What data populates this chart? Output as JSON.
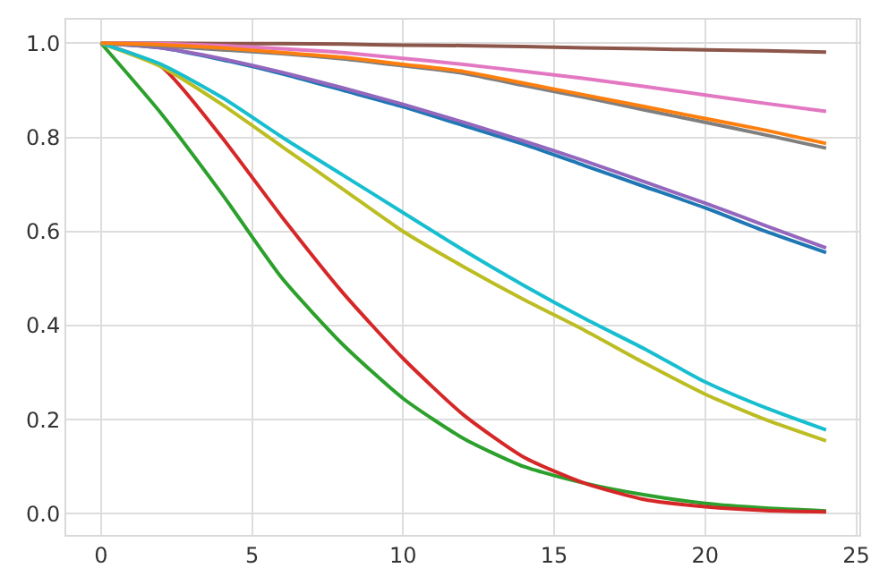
{
  "chart_data": {
    "type": "line",
    "x": [
      0,
      2,
      4,
      6,
      8,
      10,
      12,
      14,
      16,
      18,
      20,
      22,
      24
    ],
    "xlim": [
      -1.15,
      25.1
    ],
    "ylim": [
      -0.045,
      1.05
    ],
    "xticks": [
      0,
      5,
      10,
      15,
      20,
      25
    ],
    "yticks": [
      {
        "value": 0,
        "label": "0.0"
      },
      {
        "value": 0.2,
        "label": "0.2"
      },
      {
        "value": 0.4,
        "label": "0.4"
      },
      {
        "value": 0.6,
        "label": "0.6"
      },
      {
        "value": 0.8,
        "label": "0.8"
      },
      {
        "value": 1,
        "label": "1.0"
      }
    ],
    "grid": true,
    "marker": "none",
    "line_style": "solid",
    "series": [
      {
        "color": "#1f77b4",
        "values": [
          1,
          0.99,
          0.965,
          0.935,
          0.9,
          0.865,
          0.825,
          0.785,
          0.74,
          0.695,
          0.65,
          0.6,
          0.555
        ]
      },
      {
        "color": "#2ca02c",
        "values": [
          1,
          0.85,
          0.68,
          0.5,
          0.36,
          0.245,
          0.16,
          0.1,
          0.065,
          0.04,
          0.022,
          0.012,
          0.006
        ]
      },
      {
        "color": "#d62728",
        "values": [
          1,
          0.95,
          0.8,
          0.63,
          0.47,
          0.33,
          0.21,
          0.12,
          0.065,
          0.03,
          0.015,
          0.007,
          0.004
        ]
      },
      {
        "color": "#9467bd",
        "values": [
          1,
          0.99,
          0.967,
          0.938,
          0.905,
          0.87,
          0.832,
          0.792,
          0.75,
          0.705,
          0.66,
          0.612,
          0.565
        ]
      },
      {
        "color": "#8c564b",
        "values": [
          1,
          1,
          0.999,
          0.999,
          0.998,
          0.996,
          0.995,
          0.993,
          0.99,
          0.988,
          0.986,
          0.984,
          0.981
        ]
      },
      {
        "color": "#e377c2",
        "values": [
          1,
          0.999,
          0.995,
          0.988,
          0.98,
          0.968,
          0.955,
          0.94,
          0.925,
          0.908,
          0.89,
          0.872,
          0.855
        ]
      },
      {
        "color": "#7f7f7f",
        "values": [
          1,
          0.994,
          0.986,
          0.978,
          0.967,
          0.952,
          0.936,
          0.91,
          0.885,
          0.858,
          0.832,
          0.805,
          0.777
        ]
      },
      {
        "color": "#bcbd22",
        "values": [
          1,
          0.95,
          0.87,
          0.78,
          0.69,
          0.6,
          0.525,
          0.455,
          0.39,
          0.32,
          0.254,
          0.2,
          0.155
        ]
      },
      {
        "color": "#17becf",
        "values": [
          1,
          0.955,
          0.885,
          0.8,
          0.72,
          0.64,
          0.56,
          0.485,
          0.415,
          0.35,
          0.28,
          0.225,
          0.178
        ]
      },
      {
        "color": "#ff7f0e",
        "values": [
          1,
          0.997,
          0.99,
          0.98,
          0.97,
          0.955,
          0.94,
          0.915,
          0.89,
          0.865,
          0.84,
          0.815,
          0.787
        ]
      }
    ]
  }
}
